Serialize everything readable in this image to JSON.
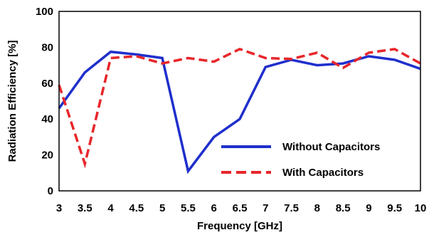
{
  "chart_data": {
    "type": "line",
    "xlabel": "Frequency [GHz]",
    "ylabel": "Radiation Efficiency [%]",
    "xlim": [
      3,
      10
    ],
    "ylim": [
      0,
      100
    ],
    "x_ticks": [
      "3",
      "3.5",
      "4",
      "4.5",
      "5",
      "5.5",
      "6",
      "6.5",
      "7",
      "7.5",
      "8",
      "8.5",
      "9",
      "9.5",
      "10"
    ],
    "y_ticks": [
      "0",
      "20",
      "40",
      "60",
      "80",
      "100"
    ],
    "x": [
      3,
      3.5,
      4,
      4.5,
      5,
      5.5,
      6,
      6.5,
      7,
      7.5,
      8,
      8.5,
      9,
      9.5,
      10
    ],
    "series": [
      {
        "name": "Without Capacitors",
        "color": "#1f2fcc",
        "style": "solid",
        "values": [
          46,
          66,
          77.5,
          76,
          74,
          11,
          30,
          40,
          69,
          73,
          70,
          71,
          75,
          73,
          68
        ]
      },
      {
        "name": "With Capacitors",
        "color": "#e8262a",
        "style": "dashed",
        "values": [
          59,
          15,
          74,
          75,
          71,
          74,
          72,
          79,
          74,
          73.5,
          77,
          68.5,
          77,
          79,
          71
        ]
      }
    ],
    "grid": false,
    "legend_position": "bottom-right"
  }
}
